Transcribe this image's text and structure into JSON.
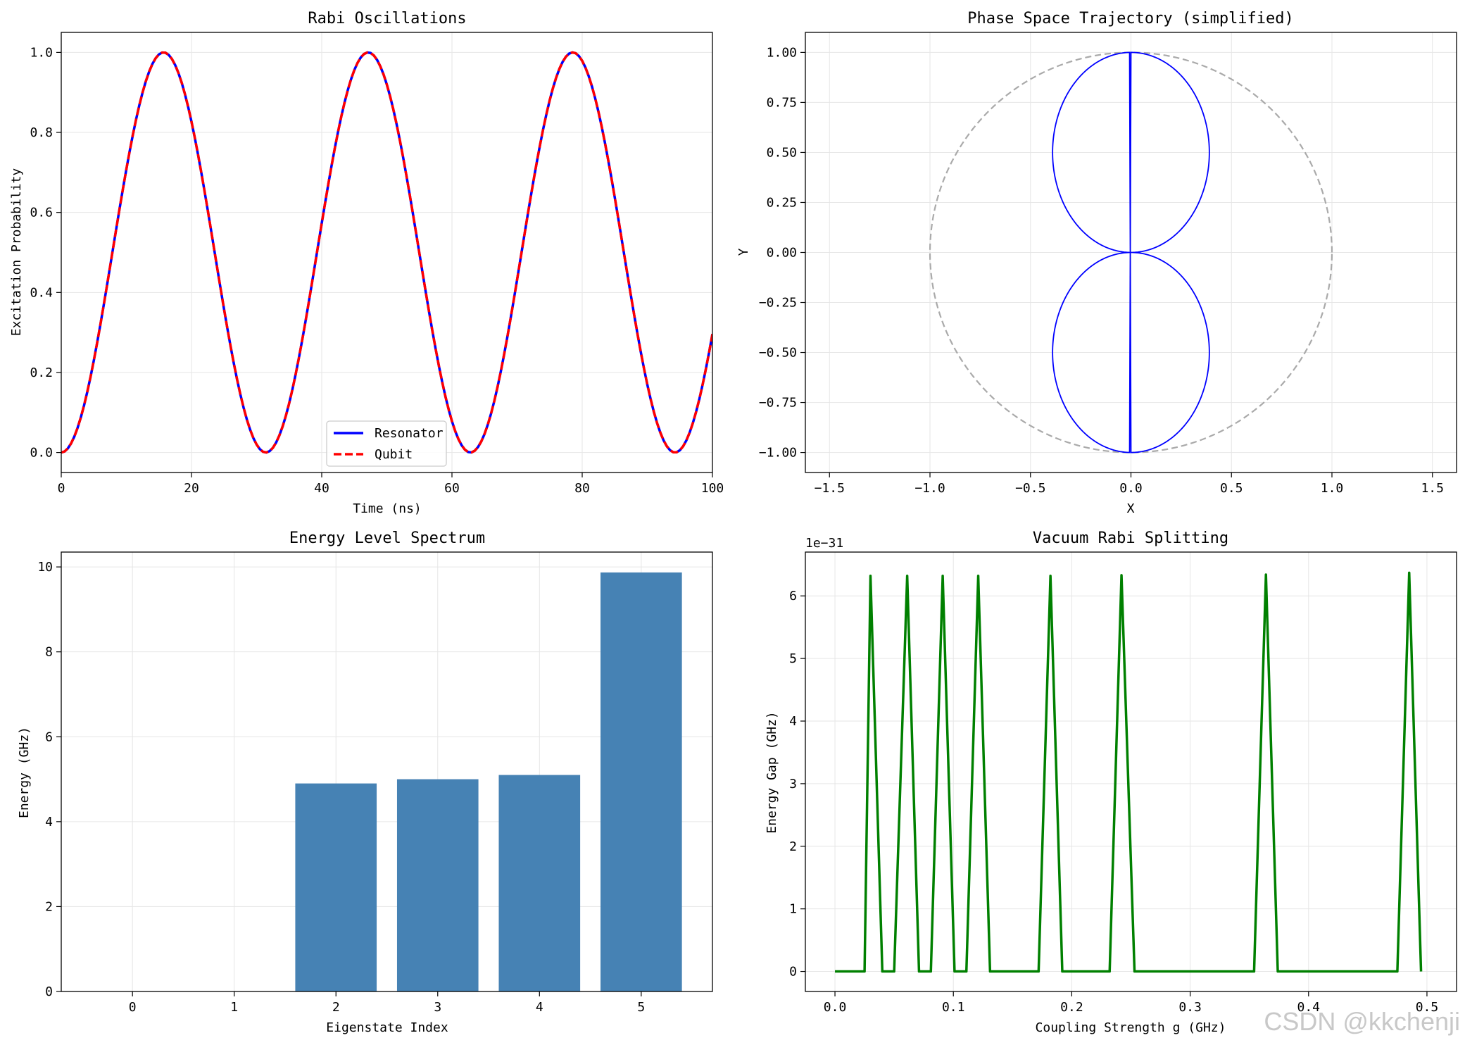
{
  "watermark": "CSDN @kkchenji",
  "colors": {
    "resonator": "#0000ff",
    "qubit": "#ff0000",
    "trajectory": "#0000ff",
    "unit_circle": "#aaaaaa",
    "bars": "#4682b4",
    "gap_line": "#008000",
    "grid": "#e6e6e6"
  },
  "chart_data": [
    {
      "id": "rabi",
      "type": "line",
      "title": "Rabi Oscillations",
      "xlabel": "Time (ns)",
      "ylabel": "Excitation Probability",
      "xlim": [
        0,
        100
      ],
      "ylim": [
        -0.05,
        1.05
      ],
      "xticks": [
        0,
        20,
        40,
        60,
        80,
        100
      ],
      "xtick_labels": [
        "0",
        "20",
        "40",
        "60",
        "80",
        "100"
      ],
      "yticks": [
        0,
        0.2,
        0.4,
        0.6,
        0.8,
        1.0
      ],
      "ytick_labels": [
        "0.0",
        "0.2",
        "0.4",
        "0.6",
        "0.8",
        "1.0"
      ],
      "grid": true,
      "legend": "lower center",
      "model": "sin^2(omega*t/2)",
      "omega": 0.2,
      "t_step": 0.5,
      "series": [
        {
          "name": "Resonator",
          "style": "solid"
        },
        {
          "name": "Qubit",
          "style": "dashed"
        }
      ]
    },
    {
      "id": "phase",
      "type": "line",
      "title": "Phase Space Trajectory (simplified)",
      "xlabel": "X",
      "ylabel": "Y",
      "xlim": [
        -1.62,
        1.62
      ],
      "ylim": [
        -1.1,
        1.1
      ],
      "xticks": [
        -1.5,
        -1.0,
        -0.5,
        0.0,
        0.5,
        1.0,
        1.5
      ],
      "xtick_labels": [
        "−1.5",
        "−1.0",
        "−0.5",
        "0.0",
        "0.5",
        "1.0",
        "1.5"
      ],
      "yticks": [
        -1.0,
        -0.75,
        -0.5,
        -0.25,
        0.0,
        0.25,
        0.5,
        0.75,
        1.0
      ],
      "ytick_labels": [
        "−1.00",
        "−0.75",
        "−0.50",
        "−0.25",
        "0.00",
        "0.25",
        "0.50",
        "0.75",
        "1.00"
      ],
      "grid": true,
      "trajectory_model": "x=sin(theta)*cos(theta), y=sin(theta)^2 ... cos(theta) (figure-eight)",
      "unit_circle_radius": 1.0
    },
    {
      "id": "energy",
      "type": "bar",
      "title": "Energy Level Spectrum",
      "xlabel": "Eigenstate Index",
      "ylabel": "Energy (GHz)",
      "categories": [
        "0",
        "1",
        "2",
        "3",
        "4",
        "5"
      ],
      "values": [
        0.0,
        0.0,
        4.9,
        5.0,
        5.1,
        9.87
      ],
      "xlim": [
        -0.7,
        5.7
      ],
      "ylim": [
        0,
        10.35
      ],
      "yticks": [
        0,
        2,
        4,
        6,
        8,
        10
      ],
      "ytick_labels": [
        "0",
        "2",
        "4",
        "6",
        "8",
        "10"
      ],
      "grid": true
    },
    {
      "id": "gap",
      "type": "line",
      "title": "Vacuum Rabi Splitting",
      "xlabel": "Coupling Strength g (GHz)",
      "ylabel": "Energy Gap (GHz)",
      "offset_text": "1e−31",
      "xlim": [
        -0.025,
        0.525
      ],
      "ylim": [
        -0.32,
        6.7
      ],
      "xticks": [
        0.0,
        0.1,
        0.2,
        0.3,
        0.4,
        0.5
      ],
      "xtick_labels": [
        "0.0",
        "0.1",
        "0.2",
        "0.3",
        "0.4",
        "0.5"
      ],
      "yticks": [
        0,
        1,
        2,
        3,
        4,
        5,
        6
      ],
      "ytick_labels": [
        "0",
        "1",
        "2",
        "3",
        "4",
        "5",
        "6"
      ],
      "grid": true,
      "x": [
        0.0,
        0.02,
        0.025,
        0.03,
        0.04,
        0.05,
        0.061,
        0.071,
        0.081,
        0.091,
        0.101,
        0.111,
        0.121,
        0.131,
        0.172,
        0.182,
        0.192,
        0.232,
        0.242,
        0.253,
        0.354,
        0.364,
        0.374,
        0.475,
        0.485,
        0.495
      ],
      "values": [
        0.0,
        0.0,
        0.0,
        6.32,
        0.0,
        0.0,
        6.32,
        0.0,
        0.0,
        6.32,
        0.0,
        0.0,
        6.32,
        0.0,
        0.0,
        6.32,
        0.0,
        0.0,
        6.33,
        0.0,
        0.0,
        6.34,
        0.0,
        0.0,
        6.37,
        0.0
      ]
    }
  ]
}
